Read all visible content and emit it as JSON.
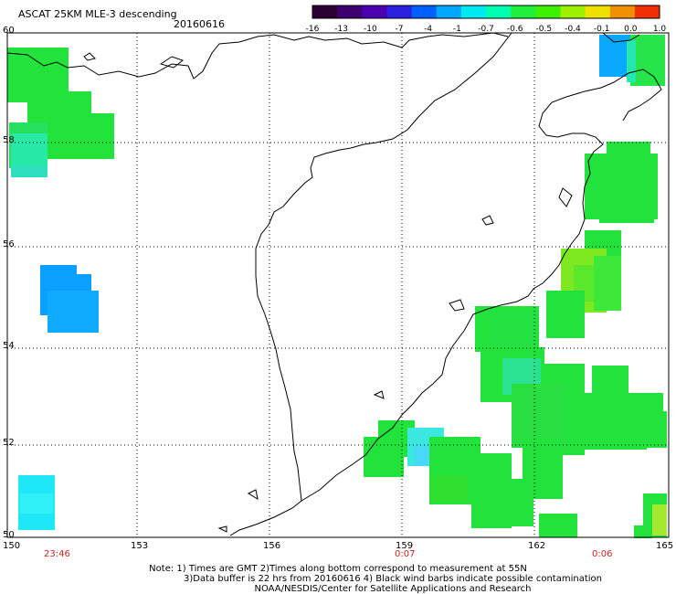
{
  "title": "ASCAT 25KM MLE-3 descending",
  "date": "20160616",
  "colorbar": {
    "labels": [
      "-16",
      "-13",
      "-10",
      "-7",
      "-4",
      "-1",
      "-0.7",
      "-0.6",
      "-0.5",
      "-0.4",
      "-0.1",
      "0.0",
      "1.0"
    ],
    "colors": [
      "#2a0033",
      "#3d0070",
      "#4a00b0",
      "#2b1fe0",
      "#0060ff",
      "#00a8ff",
      "#00e8f0",
      "#00ffb0",
      "#1ef03c",
      "#3cf000",
      "#9cf000",
      "#f0e000",
      "#f09000",
      "#f03000"
    ]
  },
  "lat_labels": [
    "60",
    "58",
    "56",
    "54",
    "52",
    "50"
  ],
  "lon_labels": [
    "150",
    "153",
    "156",
    "159",
    "162",
    "165"
  ],
  "time_labels": [
    "23:46",
    "0:07",
    "0:06"
  ],
  "notes": [
    "Note: 1) Times are GMT 2)Times along bottom correspond to measurement at 55N",
    "3)Data buffer is 22 hrs from 20160616 4) Black wind barbs indicate possible contamination",
    "NOAA/NESDIS/Center for Satellite Applications and Research"
  ]
}
